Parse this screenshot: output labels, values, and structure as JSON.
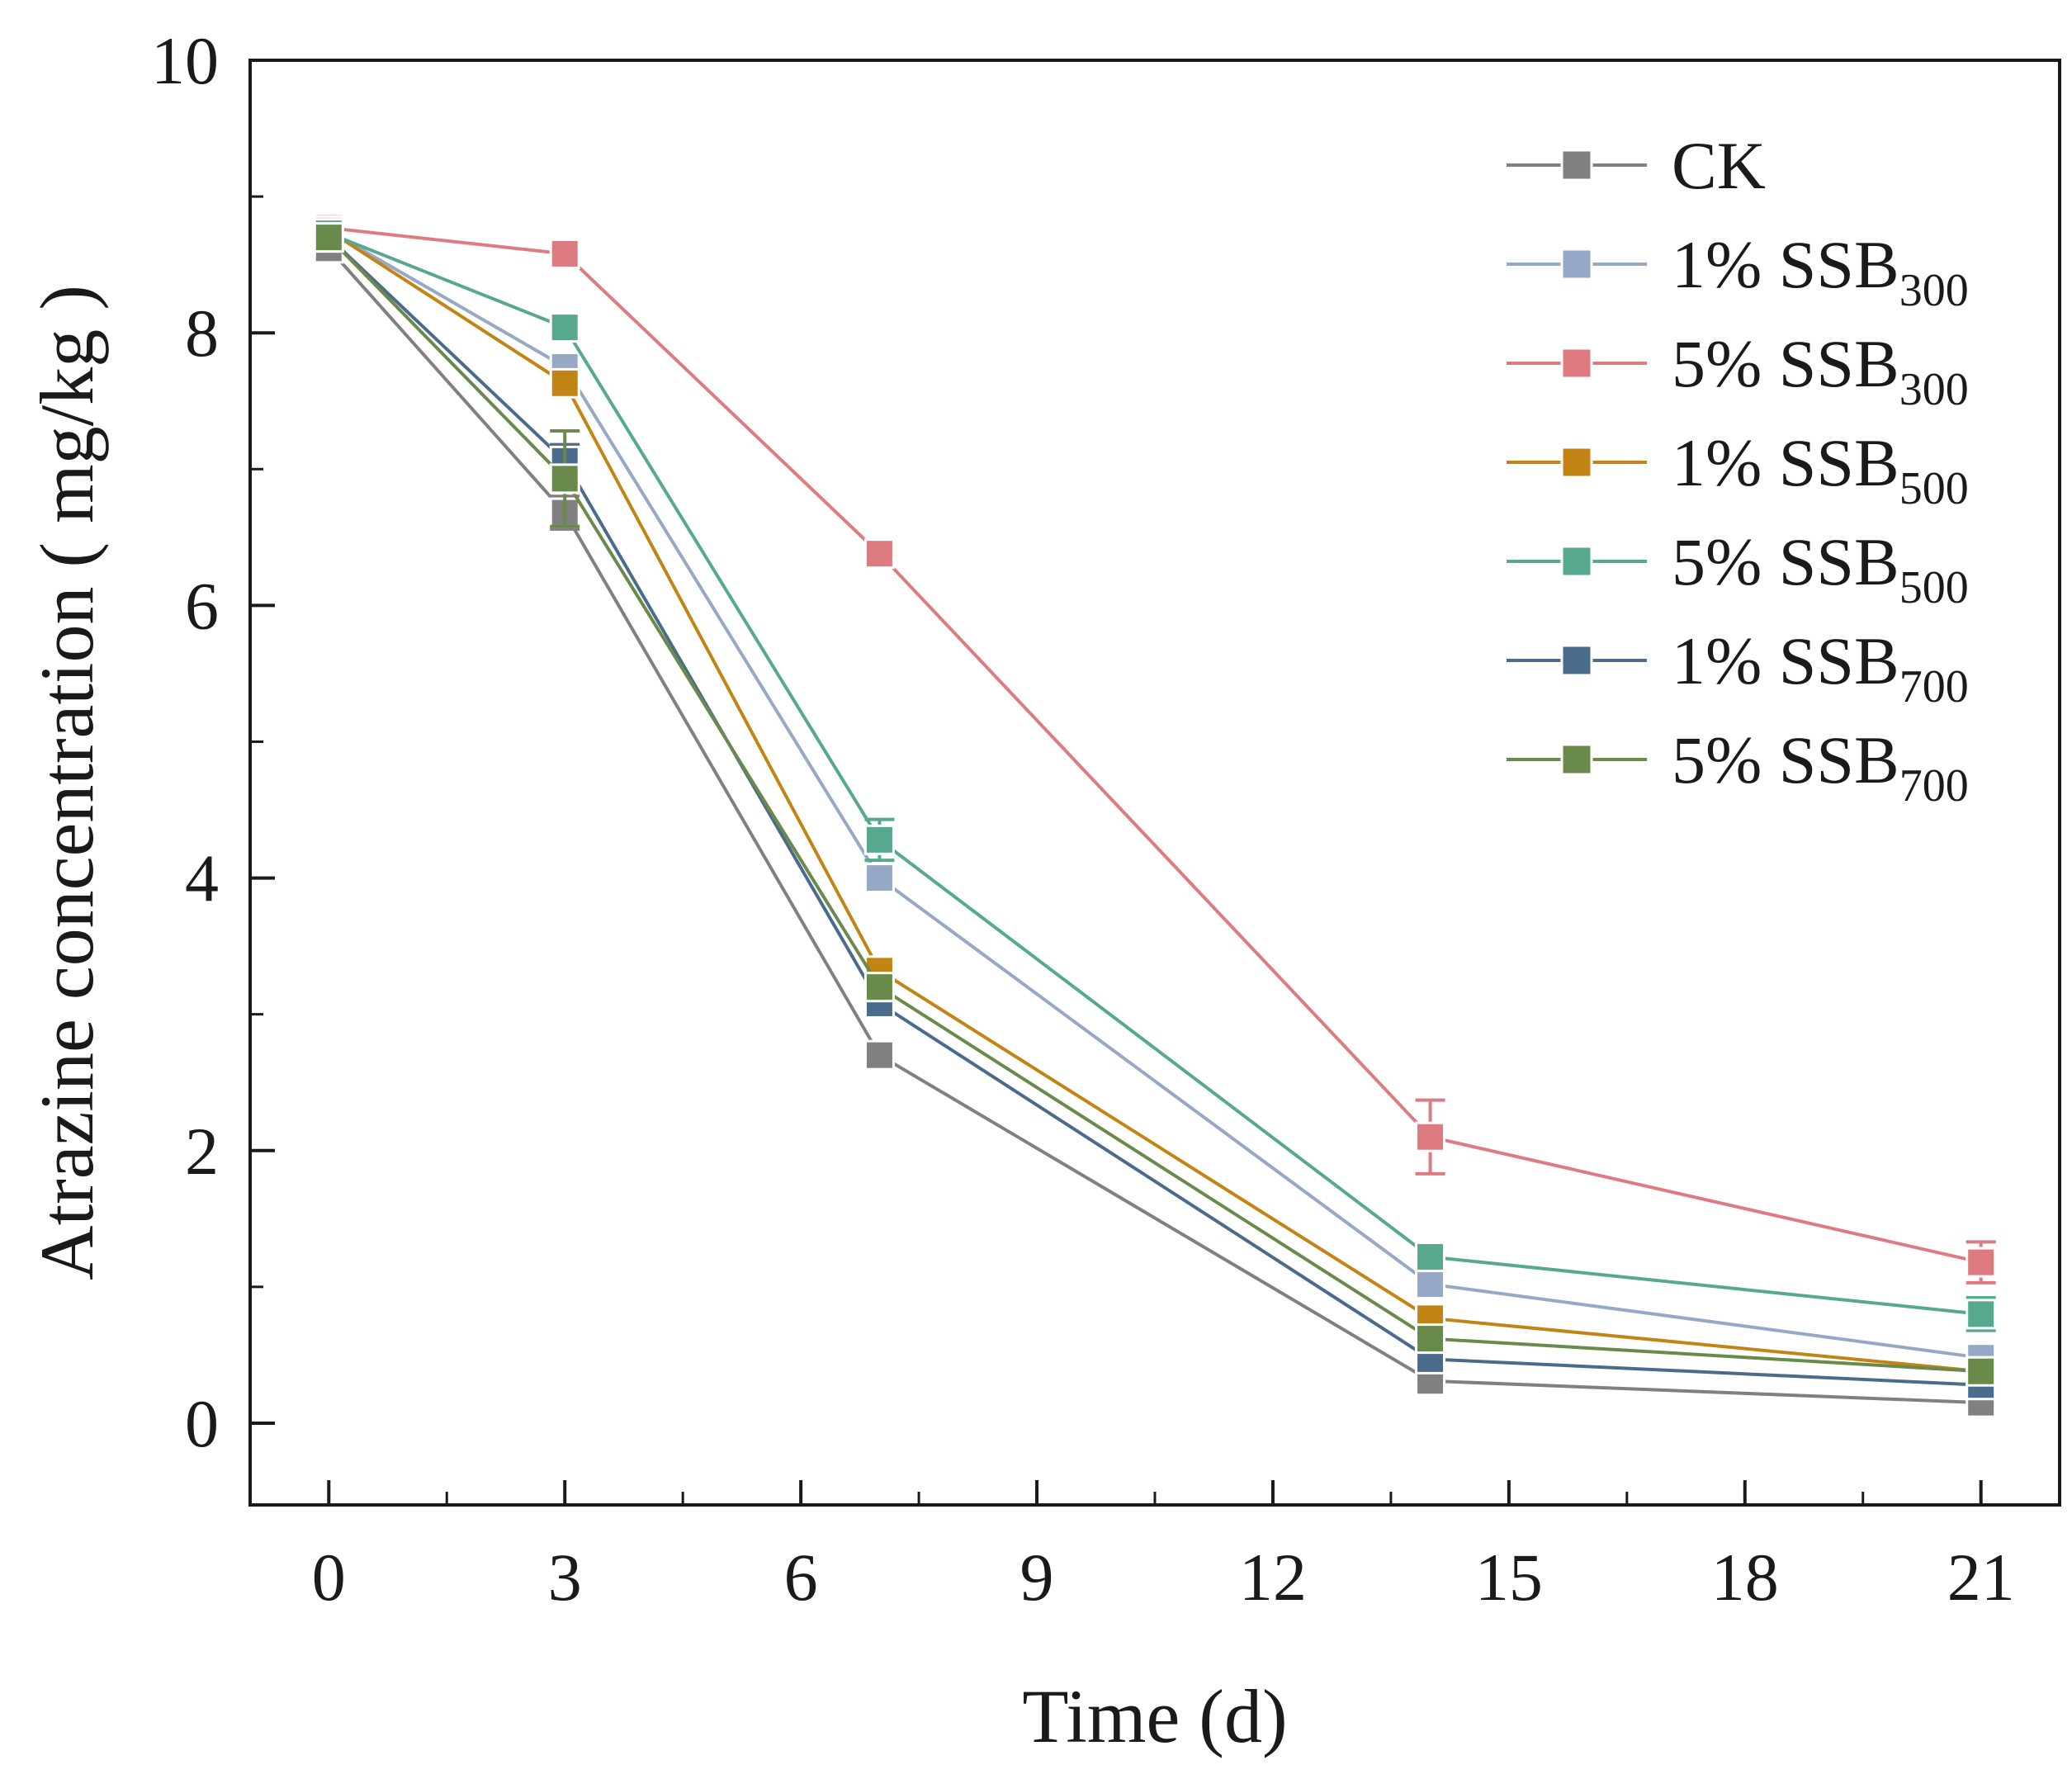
{
  "chart_data": {
    "type": "line",
    "title": "",
    "xlabel": "Time (d)",
    "ylabel": "Atrazine concentration ( mg/kg )",
    "xlim": [
      -1,
      22
    ],
    "ylim": [
      -0.6,
      10
    ],
    "xticks": [
      0,
      3,
      6,
      9,
      12,
      15,
      18,
      21
    ],
    "yticks": [
      0,
      2,
      4,
      6,
      8,
      10
    ],
    "x": [
      0,
      3,
      7,
      14,
      21
    ],
    "legend_position": "top-right",
    "series": [
      {
        "name": "CK",
        "label": "CK",
        "sub": "",
        "color": "#808080",
        "values": [
          8.62,
          6.68,
          2.7,
          0.31,
          0.15
        ],
        "errors": [
          0.05,
          0.12,
          0.08,
          0.05,
          0.04
        ]
      },
      {
        "name": "1% SSB300",
        "label": "1% SSB",
        "sub": "300",
        "color": "#97a8c6",
        "values": [
          8.75,
          7.75,
          4.0,
          1.02,
          0.48
        ],
        "errors": [
          0.05,
          0.1,
          0.08,
          0.08,
          0.06
        ]
      },
      {
        "name": "5% SSB300",
        "label": "5% SSB",
        "sub": "300",
        "color": "#de7b80",
        "values": [
          8.77,
          8.58,
          6.38,
          2.1,
          1.18
        ],
        "errors": [
          0.05,
          0.08,
          0.07,
          0.27,
          0.15
        ]
      },
      {
        "name": "1% SSB500",
        "label": "1% SSB",
        "sub": "500",
        "color": "#c28414",
        "values": [
          8.75,
          7.63,
          3.32,
          0.77,
          0.38
        ],
        "errors": [
          0.05,
          0.1,
          0.08,
          0.06,
          0.05
        ]
      },
      {
        "name": "5% SSB500",
        "label": "5% SSB",
        "sub": "500",
        "color": "#56a98e",
        "values": [
          8.73,
          8.04,
          4.28,
          1.22,
          0.8
        ],
        "errors": [
          0.05,
          0.07,
          0.15,
          0.07,
          0.12
        ]
      },
      {
        "name": "1% SSB700",
        "label": "1% SSB",
        "sub": "700",
        "color": "#4a6b8c",
        "values": [
          8.7,
          7.06,
          3.08,
          0.47,
          0.28
        ],
        "errors": [
          0.05,
          0.12,
          0.08,
          0.07,
          0.05
        ]
      },
      {
        "name": "5% SSB700",
        "label": "5% SSB",
        "sub": "700",
        "color": "#6a8a4c",
        "values": [
          8.7,
          6.93,
          3.2,
          0.62,
          0.38
        ],
        "errors": [
          0.05,
          0.35,
          0.1,
          0.07,
          0.06
        ]
      }
    ]
  }
}
